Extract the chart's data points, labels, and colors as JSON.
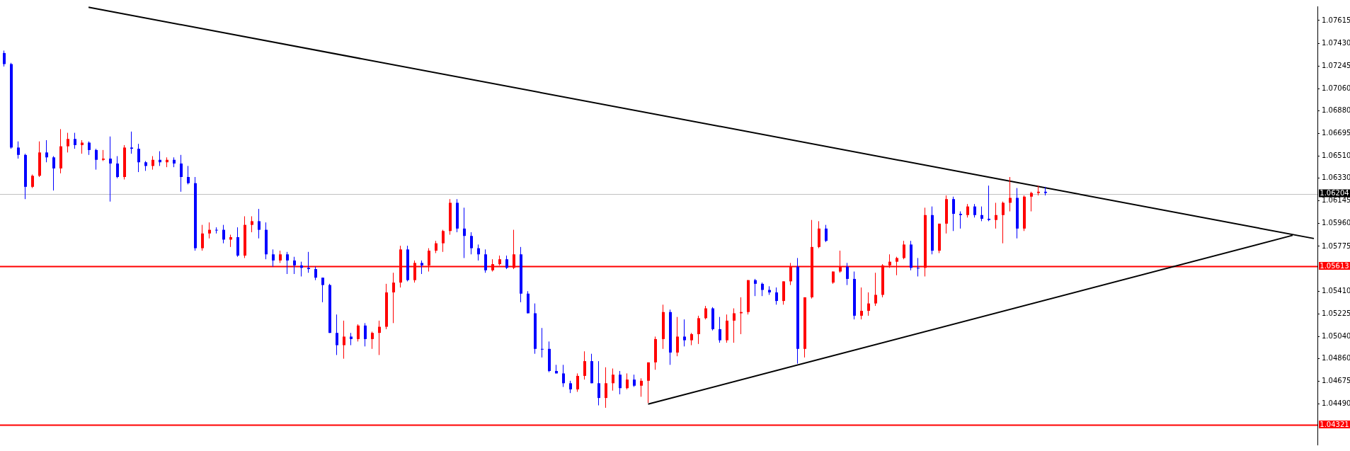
{
  "chart_data": {
    "type": "candlestick",
    "categories": [
      null,
      null,
      null,
      null,
      null,
      null,
      null,
      null,
      null,
      null,
      null,
      null,
      null,
      null,
      null,
      null,
      null,
      null,
      null,
      null,
      null,
      null,
      null,
      null,
      null,
      null,
      null,
      null,
      null,
      null,
      null,
      null,
      null,
      null,
      null,
      null,
      null,
      null,
      null,
      null,
      null,
      null,
      null,
      null,
      null,
      null,
      null,
      null,
      null,
      null,
      null,
      null,
      null,
      null,
      null,
      null,
      null,
      null,
      null,
      null,
      null,
      null,
      null,
      null,
      null,
      null,
      null,
      null,
      null,
      null,
      null,
      null,
      null,
      null,
      null,
      null,
      null,
      null,
      null,
      null,
      null,
      null,
      null,
      null,
      null,
      null,
      null,
      null,
      null,
      null,
      null,
      null,
      null,
      null,
      null,
      null,
      null,
      null,
      null,
      null,
      null,
      null,
      null,
      null,
      null,
      null,
      null,
      null,
      null,
      null,
      null,
      null,
      null,
      null,
      null,
      null,
      null,
      null,
      null,
      null,
      null,
      null,
      null,
      null,
      null,
      null,
      null,
      null,
      null,
      null,
      null,
      null,
      null,
      null,
      null,
      null,
      null,
      null,
      null,
      null,
      null,
      null,
      null,
      null,
      null,
      null,
      null,
      null,
      null,
      null,
      null,
      null,
      null,
      null,
      null,
      null,
      null,
      null,
      null,
      null,
      null,
      null,
      null,
      null,
      null,
      null,
      null,
      null,
      null,
      null,
      null,
      null,
      null,
      null,
      null,
      null,
      null,
      null,
      null,
      null,
      null,
      null,
      null,
      null,
      null,
      null
    ],
    "ohlc": [
      [
        1.0735,
        1.0737,
        1.0724,
        1.0726
      ],
      [
        1.0726,
        1.0727,
        1.0657,
        1.0658
      ],
      [
        1.0658,
        1.0663,
        1.0649,
        1.0652
      ],
      [
        1.0652,
        1.0653,
        1.0616,
        1.0626
      ],
      [
        1.0626,
        1.0636,
        1.0625,
        1.0635
      ],
      [
        1.0635,
        1.0663,
        1.0634,
        1.0654
      ],
      [
        1.0654,
        1.0664,
        1.0646,
        1.065
      ],
      [
        1.065,
        1.0651,
        1.0623,
        1.0641
      ],
      [
        1.0641,
        1.0673,
        1.0637,
        1.0659
      ],
      [
        1.0659,
        1.067,
        1.0654,
        1.0665
      ],
      [
        1.0665,
        1.067,
        1.0657,
        1.066
      ],
      [
        1.066,
        1.0664,
        1.0653,
        1.0662
      ],
      [
        1.0662,
        1.0663,
        1.0652,
        1.0656
      ],
      [
        1.0656,
        1.0657,
        1.064,
        1.0648
      ],
      [
        1.0648,
        1.0656,
        1.0647,
        1.0649
      ],
      [
        1.0649,
        1.0667,
        1.0614,
        1.0645
      ],
      [
        1.0645,
        1.0651,
        1.0633,
        1.0634
      ],
      [
        1.0634,
        1.066,
        1.0632,
        1.0658
      ],
      [
        1.0658,
        1.0671,
        1.0653,
        1.0657
      ],
      [
        1.0657,
        1.0661,
        1.0638,
        1.0646
      ],
      [
        1.0646,
        1.0647,
        1.0639,
        1.0643
      ],
      [
        1.0643,
        1.0651,
        1.064,
        1.0648
      ],
      [
        1.0648,
        1.0655,
        1.0643,
        1.0646
      ],
      [
        1.0646,
        1.065,
        1.0642,
        1.0648
      ],
      [
        1.0648,
        1.065,
        1.0642,
        1.0645
      ],
      [
        1.0645,
        1.0652,
        1.0622,
        1.0634
      ],
      [
        1.0634,
        1.0643,
        1.0628,
        1.0629
      ],
      [
        1.0629,
        1.0634,
        1.0574,
        1.0576
      ],
      [
        1.0576,
        1.0595,
        1.0574,
        1.0588
      ],
      [
        1.0588,
        1.0597,
        1.0584,
        1.0591
      ],
      [
        1.0591,
        1.0593,
        1.0588,
        1.0591
      ],
      [
        1.0591,
        1.0595,
        1.058,
        1.0583
      ],
      [
        1.0583,
        1.0587,
        1.0577,
        1.0585
      ],
      [
        1.0585,
        1.0593,
        1.0569,
        1.057
      ],
      [
        1.057,
        1.0602,
        1.0568,
        1.0595
      ],
      [
        1.0595,
        1.0602,
        1.0589,
        1.0598
      ],
      [
        1.0598,
        1.0608,
        1.0584,
        1.0591
      ],
      [
        1.0591,
        1.0597,
        1.0567,
        1.0571
      ],
      [
        1.0571,
        1.0575,
        1.0561,
        1.0566
      ],
      [
        1.0566,
        1.0574,
        1.0564,
        1.0571
      ],
      [
        1.0571,
        1.0573,
        1.0555,
        1.0566
      ],
      [
        1.0566,
        1.0569,
        1.0555,
        1.0562
      ],
      [
        1.0562,
        1.0565,
        1.0553,
        1.056
      ],
      [
        1.056,
        1.0573,
        1.0556,
        1.0559
      ],
      [
        1.0559,
        1.0561,
        1.055,
        1.0552
      ],
      [
        1.0552,
        1.0552,
        1.0532,
        1.0546
      ],
      [
        1.0546,
        1.0547,
        1.0507,
        1.0507
      ],
      [
        1.0507,
        1.0522,
        1.0489,
        1.0497
      ],
      [
        1.0497,
        1.0517,
        1.0486,
        1.0504
      ],
      [
        1.0504,
        1.0507,
        1.0497,
        1.0502
      ],
      [
        1.0502,
        1.0514,
        1.05,
        1.0513
      ],
      [
        1.0513,
        1.0515,
        1.0496,
        1.0502
      ],
      [
        1.0502,
        1.0508,
        1.0494,
        1.0507
      ],
      [
        1.0507,
        1.0517,
        1.0489,
        1.0512
      ],
      [
        1.0512,
        1.0547,
        1.051,
        1.054
      ],
      [
        1.054,
        1.0556,
        1.0515,
        1.0548
      ],
      [
        1.0548,
        1.0578,
        1.0544,
        1.0575
      ],
      [
        1.0575,
        1.0578,
        1.0549,
        1.055
      ],
      [
        1.055,
        1.0566,
        1.0548,
        1.0564
      ],
      [
        1.0564,
        1.0566,
        1.0555,
        1.0562
      ],
      [
        1.0562,
        1.0576,
        1.0557,
        1.0574
      ],
      [
        1.0574,
        1.0582,
        1.0572,
        1.058
      ],
      [
        1.058,
        1.0591,
        1.0573,
        1.059
      ],
      [
        1.059,
        1.0616,
        1.0587,
        1.0613
      ],
      [
        1.0613,
        1.0616,
        1.0589,
        1.0592
      ],
      [
        1.0592,
        1.0609,
        1.0568,
        1.0586
      ],
      [
        1.0586,
        1.0589,
        1.0571,
        1.0576
      ],
      [
        1.0576,
        1.0579,
        1.0566,
        1.0571
      ],
      [
        1.0571,
        1.0575,
        1.0556,
        1.0558
      ],
      [
        1.0558,
        1.0567,
        1.0557,
        1.0563
      ],
      [
        1.0563,
        1.057,
        1.0562,
        1.0567
      ],
      [
        1.0567,
        1.057,
        1.0559,
        1.056
      ],
      [
        1.056,
        1.0591,
        1.0559,
        1.0571
      ],
      [
        1.0571,
        1.0577,
        1.0532,
        1.0539
      ],
      [
        1.0539,
        1.0541,
        1.0523,
        1.0523
      ],
      [
        1.0523,
        1.0531,
        1.049,
        1.0494
      ],
      [
        1.0494,
        1.0511,
        1.0487,
        1.0494
      ],
      [
        1.0494,
        1.05,
        1.0475,
        1.0476
      ],
      [
        1.0476,
        1.0481,
        1.0474,
        1.0474
      ],
      [
        1.0474,
        1.0481,
        1.0463,
        1.0466
      ],
      [
        1.0466,
        1.0468,
        1.0458,
        1.0461
      ],
      [
        1.0461,
        1.0474,
        1.0459,
        1.0472
      ],
      [
        1.0472,
        1.0492,
        1.0469,
        1.0484
      ],
      [
        1.0484,
        1.049,
        1.0466,
        1.0466
      ],
      [
        1.0466,
        1.0484,
        1.0448,
        1.0454
      ],
      [
        1.0454,
        1.0479,
        1.0446,
        1.0466
      ],
      [
        1.0466,
        1.0478,
        1.046,
        1.0473
      ],
      [
        1.0473,
        1.0476,
        1.0457,
        1.0462
      ],
      [
        1.0462,
        1.0474,
        1.0461,
        1.0469
      ],
      [
        1.0469,
        1.0473,
        1.0463,
        1.0464
      ],
      [
        1.0464,
        1.047,
        1.0455,
        1.0468
      ],
      [
        1.0468,
        1.0483,
        1.045,
        1.0483
      ],
      [
        1.0483,
        1.0504,
        1.0477,
        1.0502
      ],
      [
        1.0502,
        1.053,
        1.0494,
        1.0524
      ],
      [
        1.0524,
        1.0526,
        1.0481,
        1.0491
      ],
      [
        1.0491,
        1.052,
        1.0488,
        1.0504
      ],
      [
        1.0504,
        1.0518,
        1.0496,
        1.0501
      ],
      [
        1.0501,
        1.0507,
        1.0497,
        1.0506
      ],
      [
        1.0506,
        1.0521,
        1.0498,
        1.0519
      ],
      [
        1.0519,
        1.0529,
        1.0518,
        1.0527
      ],
      [
        1.0527,
        1.0528,
        1.0509,
        1.051
      ],
      [
        1.051,
        1.052,
        1.0499,
        1.0501
      ],
      [
        1.0501,
        1.0522,
        1.0499,
        1.0517
      ],
      [
        1.0517,
        1.0527,
        1.0499,
        1.0523
      ],
      [
        1.0523,
        1.0536,
        1.0506,
        1.0524
      ],
      [
        1.0524,
        1.055,
        1.0522,
        1.055
      ],
      [
        1.055,
        1.0551,
        1.0537,
        1.0547
      ],
      [
        1.0547,
        1.0548,
        1.0537,
        1.0542
      ],
      [
        1.0542,
        1.0545,
        1.0538,
        1.054
      ],
      [
        1.054,
        1.0544,
        1.053,
        1.0533
      ],
      [
        1.0533,
        1.0549,
        1.053,
        1.0549
      ],
      [
        1.0549,
        1.0564,
        1.0546,
        1.0561
      ],
      [
        1.0561,
        1.0568,
        1.0482,
        1.0494
      ],
      [
        1.0494,
        1.0536,
        1.0487,
        1.0536
      ],
      [
        1.0536,
        1.0599,
        1.0535,
        1.0577
      ],
      [
        1.0577,
        1.0598,
        1.0576,
        1.0592
      ],
      [
        1.0592,
        1.0595,
        1.0581,
        1.0582
      ],
      [
        1.0548,
        1.0557,
        1.0547,
        1.0557
      ],
      [
        1.0557,
        1.0574,
        1.0556,
        1.0561
      ],
      [
        1.0561,
        1.0564,
        1.0546,
        1.0551
      ],
      [
        1.0551,
        1.0557,
        1.0518,
        1.0521
      ],
      [
        1.0521,
        1.0544,
        1.0518,
        1.0525
      ],
      [
        1.0525,
        1.054,
        1.0521,
        1.0531
      ],
      [
        1.0531,
        1.0556,
        1.0529,
        1.0538
      ],
      [
        1.0538,
        1.0563,
        1.0536,
        1.0562
      ],
      [
        1.0562,
        1.0571,
        1.056,
        1.0565
      ],
      [
        1.0565,
        1.0569,
        1.0554,
        1.0568
      ],
      [
        1.0568,
        1.0582,
        1.0567,
        1.0579
      ],
      [
        1.0579,
        1.0582,
        1.0558,
        1.056
      ],
      [
        1.056,
        1.0568,
        1.0553,
        1.056
      ],
      [
        1.056,
        1.0609,
        1.0553,
        1.0603
      ],
      [
        1.0603,
        1.061,
        1.0571,
        1.0574
      ],
      [
        1.0574,
        1.0596,
        1.0572,
        1.0596
      ],
      [
        1.0596,
        1.0619,
        1.0588,
        1.0616
      ],
      [
        1.0616,
        1.0618,
        1.059,
        1.0604
      ],
      [
        1.0604,
        1.0606,
        1.0592,
        1.0603
      ],
      [
        1.0603,
        1.0612,
        1.0601,
        1.061
      ],
      [
        1.061,
        1.0612,
        1.0601,
        1.0603
      ],
      [
        1.0603,
        1.061,
        1.0598,
        1.06
      ],
      [
        1.06,
        1.0627,
        1.0598,
        1.0599
      ],
      [
        1.0599,
        1.0613,
        1.0592,
        1.0603
      ],
      [
        1.0603,
        1.0614,
        1.058,
        1.0613
      ],
      [
        1.0613,
        1.0634,
        1.0606,
        1.0617
      ],
      [
        1.0617,
        1.0625,
        1.0584,
        1.0592
      ],
      [
        1.0592,
        1.0619,
        1.059,
        1.0618
      ],
      [
        1.0618,
        1.0622,
        1.0606,
        1.0621
      ],
      [
        1.0621,
        1.0627,
        1.0619,
        1.0622
      ],
      [
        1.0622,
        1.0626,
        1.0619,
        1.0621
      ],
      null,
      null,
      null,
      null,
      null,
      null,
      null,
      null,
      null,
      null,
      null,
      null,
      null,
      null,
      null,
      null,
      null,
      null,
      null,
      null,
      null,
      null,
      null,
      null,
      null,
      null,
      null,
      null,
      null,
      null,
      null,
      null,
      null,
      null,
      null,
      null,
      null,
      null
    ],
    "colors": [
      "#0000ff",
      "#0000ff",
      "#0000ff",
      "#0000ff",
      "#ff0000",
      "#ff0000",
      "#0000ff",
      "#0000ff",
      "#ff0000",
      "#ff0000",
      "#0000ff",
      "#ff0000",
      "#0000ff",
      "#0000ff",
      "#ff0000",
      "#0000ff",
      "#0000ff",
      "#ff0000",
      "#0000ff",
      "#0000ff",
      "#0000ff",
      "#ff0000",
      "#0000ff",
      "#ff0000",
      "#0000ff",
      "#0000ff",
      "#0000ff",
      "#0000ff",
      "#ff0000",
      "#ff0000",
      "#0000ff",
      "#0000ff",
      "#ff0000",
      "#0000ff",
      "#ff0000",
      "#ff0000",
      "#0000ff",
      "#0000ff",
      "#0000ff",
      "#ff0000",
      "#0000ff",
      "#0000ff",
      "#0000ff",
      "#0000ff",
      "#0000ff",
      "#0000ff",
      "#0000ff",
      "#0000ff",
      "#ff0000",
      "#0000ff",
      "#ff0000",
      "#0000ff",
      "#ff0000",
      "#ff0000",
      "#ff0000",
      "#ff0000",
      "#ff0000",
      "#0000ff",
      "#ff0000",
      "#0000ff",
      "#ff0000",
      "#ff0000",
      "#ff0000",
      "#ff0000",
      "#0000ff",
      "#0000ff",
      "#0000ff",
      "#0000ff",
      "#0000ff",
      "#ff0000",
      "#ff0000",
      "#0000ff",
      "#ff0000",
      "#0000ff",
      "#0000ff",
      "#0000ff",
      "#0000ff",
      "#0000ff",
      "#0000ff",
      "#0000ff",
      "#0000ff",
      "#ff0000",
      "#ff0000",
      "#0000ff",
      "#0000ff",
      "#ff0000",
      "#ff0000",
      "#0000ff",
      "#ff0000",
      "#0000ff",
      "#ff0000",
      "#ff0000",
      "#ff0000",
      "#ff0000",
      "#0000ff",
      "#ff0000",
      "#0000ff",
      "#ff0000",
      "#ff0000",
      "#ff0000",
      "#0000ff",
      "#0000ff",
      "#ff0000",
      "#ff0000",
      "#ff0000",
      "#ff0000",
      "#0000ff",
      "#0000ff",
      "#0000ff",
      "#0000ff",
      "#ff0000",
      "#ff0000",
      "#0000ff",
      "#ff0000",
      "#ff0000",
      "#ff0000",
      "#0000ff",
      "#ff0000",
      "#ff0000",
      "#0000ff",
      "#0000ff",
      "#ff0000",
      "#ff0000",
      "#ff0000",
      "#ff0000",
      "#ff0000",
      "#ff0000",
      "#ff0000",
      "#0000ff",
      "#0000ff",
      "#ff0000",
      "#0000ff",
      "#ff0000",
      "#ff0000",
      "#0000ff",
      "#0000ff",
      "#ff0000",
      "#0000ff",
      "#0000ff",
      "#0000ff",
      "#ff0000",
      "#ff0000",
      "#ff0000",
      "#0000ff",
      "#ff0000",
      "#ff0000",
      "#ff0000",
      "#0000ff",
      null,
      null,
      null,
      null,
      null,
      null,
      null,
      null,
      null,
      null,
      null,
      null,
      null,
      null,
      null,
      null,
      null,
      null,
      null,
      null,
      null,
      null,
      null,
      null,
      null,
      null,
      null,
      null,
      null,
      null,
      null,
      null,
      null,
      null,
      null,
      null,
      null,
      null
    ],
    "series": [
      {
        "type": "line",
        "color": "#000000",
        "values": [
          null,
          null,
          null,
          null,
          null,
          null,
          null,
          null,
          null,
          null,
          null,
          null,
          1.07723,
          null,
          null,
          null,
          null,
          null,
          null,
          null,
          null,
          null,
          null,
          null,
          null,
          null,
          null,
          null,
          null,
          null,
          null,
          null,
          null,
          null,
          null,
          null,
          null,
          null,
          null,
          null,
          null,
          null,
          null,
          null,
          null,
          null,
          null,
          null,
          null,
          null,
          null,
          null,
          null,
          null,
          null,
          null,
          null,
          null,
          null,
          null,
          null,
          null,
          null,
          null,
          null,
          null,
          null,
          null,
          null,
          null,
          null,
          null,
          null,
          null,
          null,
          null,
          null,
          null,
          null,
          null,
          null,
          null,
          null,
          null,
          null,
          null,
          null,
          null,
          null,
          null,
          null,
          null,
          null,
          null,
          null,
          null,
          null,
          null,
          null,
          null,
          null,
          null,
          null,
          null,
          null,
          null,
          null,
          null,
          null,
          null,
          null,
          null,
          null,
          null,
          null,
          null,
          null,
          null,
          null,
          null,
          null,
          null,
          null,
          null,
          null,
          null,
          null,
          null,
          null,
          null,
          null,
          null,
          null,
          null,
          null,
          null,
          null,
          null,
          null,
          null,
          null,
          null,
          null,
          null,
          null,
          null,
          null,
          null,
          null,
          null,
          null,
          null,
          null,
          null,
          null,
          null,
          null,
          null,
          null,
          null,
          null,
          null,
          null,
          null,
          null,
          null,
          null,
          null,
          null,
          null,
          null,
          null,
          null,
          null,
          null,
          null,
          null,
          null,
          null,
          null,
          null,
          null,
          null,
          null,
          null,
          1.05839
        ]
      },
      {
        "type": "line",
        "color": "#000000",
        "values": [
          null,
          null,
          null,
          null,
          null,
          null,
          null,
          null,
          null,
          null,
          null,
          null,
          null,
          null,
          null,
          null,
          null,
          null,
          null,
          null,
          null,
          null,
          null,
          null,
          null,
          null,
          null,
          null,
          null,
          null,
          null,
          null,
          null,
          null,
          null,
          null,
          null,
          null,
          null,
          null,
          null,
          null,
          null,
          null,
          null,
          null,
          null,
          null,
          null,
          null,
          null,
          null,
          null,
          null,
          null,
          null,
          null,
          null,
          null,
          null,
          null,
          null,
          null,
          null,
          null,
          null,
          null,
          null,
          null,
          null,
          null,
          null,
          null,
          null,
          null,
          null,
          null,
          null,
          null,
          null,
          null,
          null,
          null,
          null,
          null,
          null,
          null,
          null,
          null,
          null,
          null,
          1.0449,
          null,
          null,
          null,
          null,
          null,
          null,
          null,
          null,
          null,
          null,
          null,
          null,
          null,
          null,
          null,
          null,
          null,
          null,
          null,
          null,
          null,
          null,
          null,
          null,
          null,
          null,
          null,
          null,
          null,
          null,
          null,
          null,
          null,
          null,
          null,
          null,
          null,
          null,
          null,
          null,
          null,
          null,
          null,
          null,
          null,
          null,
          null,
          null,
          null,
          null,
          null,
          null,
          null,
          null,
          null,
          null,
          null,
          null,
          null,
          null,
          null,
          null,
          null,
          null,
          null,
          null,
          null,
          null,
          null,
          null,
          null,
          null,
          null,
          null,
          null,
          null,
          null,
          null,
          null,
          null,
          null,
          null,
          null,
          null,
          null,
          null,
          null,
          null,
          null,
          null,
          1.05865,
          null,
          null,
          null
        ]
      }
    ],
    "ylim": [
      1.0416,
      1.0773
    ],
    "yticks": [
      {
        "value": 1.07615,
        "label": "1.07615"
      },
      {
        "value": 1.0743,
        "label": "1.07430"
      },
      {
        "value": 1.07245,
        "label": "1.07245"
      },
      {
        "value": 1.0706,
        "label": "1.07060"
      },
      {
        "value": 1.0688,
        "label": "1.06880"
      },
      {
        "value": 1.06695,
        "label": "1.06695"
      },
      {
        "value": 1.0651,
        "label": "1.06510"
      },
      {
        "value": 1.0633,
        "label": "1.06330"
      },
      {
        "value": 1.06145,
        "label": "1.06145"
      },
      {
        "value": 1.0596,
        "label": "1.05960"
      },
      {
        "value": 1.05775,
        "label": "1.05775"
      },
      {
        "value": 1.0541,
        "label": "1.05410"
      },
      {
        "value": 1.05225,
        "label": "1.05225"
      },
      {
        "value": 1.0504,
        "label": "1.05040"
      },
      {
        "value": 1.0486,
        "label": "1.04860"
      },
      {
        "value": 1.04675,
        "label": "1.04675"
      },
      {
        "value": 1.0449,
        "label": "1.04490"
      }
    ],
    "ref_lines": [
      {
        "axis": "y",
        "value": 1.06204,
        "label": "1.06204",
        "color": "#c0c0c0"
      },
      {
        "axis": "y",
        "value": 1.05613,
        "label": "1.05613",
        "color": "#ff0000"
      },
      {
        "axis": "y",
        "value": 1.04321,
        "label": "1.04321",
        "color": "#ff0000"
      }
    ],
    "tick_labels": "y",
    "legend": false
  }
}
